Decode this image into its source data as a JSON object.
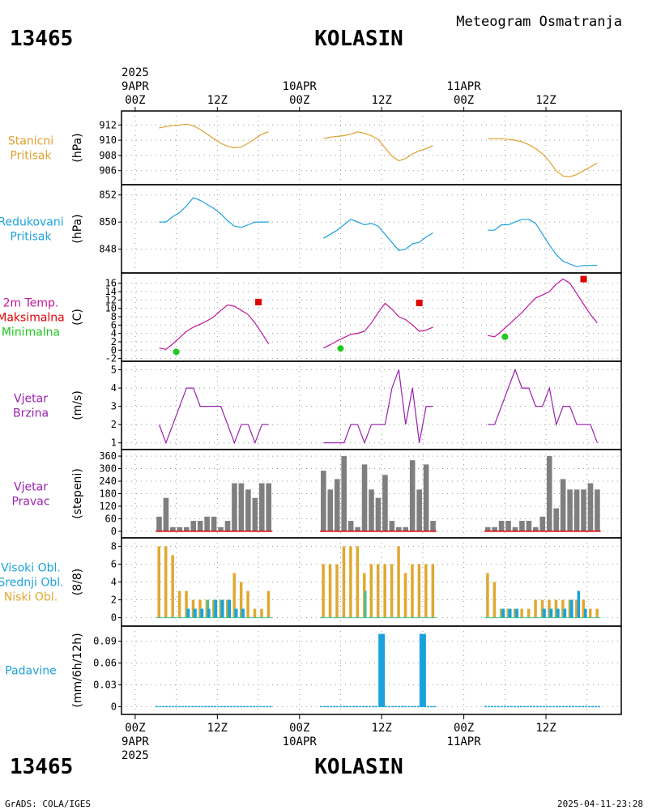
{
  "header": {
    "station_id": "13465",
    "station_name": "KOLASIN",
    "product": "Meteogram Osmatranja"
  },
  "footer": {
    "station_id": "13465",
    "station_name": "KOLASIN",
    "credit": "GrADS: COLA/IGES",
    "timestamp": "2025-04-11-23:28"
  },
  "x_axis": {
    "ticks": [
      {
        "hour": 0,
        "label": "00Z",
        "date": "9APR",
        "year": "2025"
      },
      {
        "hour": 12,
        "label": "12Z"
      },
      {
        "hour": 24,
        "label": "00Z",
        "date": "10APR"
      },
      {
        "hour": 36,
        "label": "12Z"
      },
      {
        "hour": 48,
        "label": "00Z",
        "date": "11APR"
      },
      {
        "hour": 60,
        "label": "12Z"
      }
    ]
  },
  "colors": {
    "pressure": "#e0a030",
    "reduced_pressure": "#1ba1dc",
    "temp": "#c0149a",
    "tmax": "#e00000",
    "tmin": "#20c820",
    "wind": "#9b1fb0",
    "wind_dir": "#7f7f7f",
    "cloud_high": "#1ba1dc",
    "cloud_mid": "#40c0a0",
    "cloud_low": "#e0a830",
    "precip": "#1ba1dc"
  },
  "chart_data": [
    {
      "type": "line",
      "label_lines": [
        "Stanicni",
        "Pritisak"
      ],
      "ylabel": "(hPa)",
      "ylim": [
        904.8,
        913.2
      ],
      "yticks": [
        906,
        908,
        910,
        912
      ],
      "series": [
        {
          "x": [
            3.5,
            4.5,
            5.5,
            6.5,
            7.5,
            8.5,
            9.5,
            10.5,
            11.5,
            12.5,
            13.5,
            14.5,
            15.5,
            16.5,
            17.5,
            18.5,
            19.5
          ],
          "y": [
            911.6,
            911.8,
            911.9,
            912.0,
            912.1,
            911.9,
            911.4,
            910.8,
            910.2,
            909.6,
            909.2,
            909.0,
            909.1,
            909.6,
            910.2,
            910.8,
            911.1
          ]
        },
        {
          "x": [
            27.5,
            28.5,
            29.5,
            30.5,
            31.5,
            32.5,
            33.5,
            34.5,
            35.5,
            36.5,
            37.5,
            38.5,
            39.5,
            40.5,
            41.5,
            42.5,
            43.5
          ],
          "y": [
            910.2,
            910.4,
            910.5,
            910.6,
            910.8,
            911.1,
            910.9,
            910.6,
            910.1,
            909.0,
            907.9,
            907.3,
            907.6,
            908.2,
            908.6,
            908.9,
            909.3
          ]
        },
        {
          "x": [
            51.5,
            52.5,
            53.5,
            54.5,
            55.5,
            56.5,
            57.5,
            58.5,
            59.5,
            60.5,
            61.5,
            62.5,
            63.5,
            64.5,
            65.5,
            66.5,
            67.5
          ],
          "y": [
            910.2,
            910.2,
            910.2,
            910.1,
            910.0,
            909.8,
            909.4,
            908.9,
            908.2,
            907.2,
            906.0,
            905.3,
            905.2,
            905.5,
            906.0,
            906.5,
            907.0
          ]
        }
      ]
    },
    {
      "type": "line",
      "label_lines": [
        "Redukovani",
        "Pritisak"
      ],
      "ylabel": "(hPa)",
      "ylim": [
        846.6,
        852.4
      ],
      "yticks": [
        848,
        850,
        852
      ],
      "series": [
        {
          "x": [
            3.5,
            4.5,
            5.5,
            6.5,
            7.5,
            8.5,
            9.5,
            10.5,
            11.5,
            12.5,
            13.5,
            14.5,
            15.5,
            16.5,
            17.5,
            18.5,
            19.5
          ],
          "y": [
            850.0,
            850.0,
            850.4,
            850.7,
            851.2,
            851.8,
            851.6,
            851.3,
            851.0,
            850.6,
            850.1,
            849.7,
            849.6,
            849.8,
            850.0,
            850.0,
            850.0
          ]
        },
        {
          "x": [
            27.5,
            28.5,
            29.5,
            30.5,
            31.5,
            32.5,
            33.5,
            34.5,
            35.5,
            36.5,
            37.5,
            38.5,
            39.5,
            40.5,
            41.5,
            42.5,
            43.5
          ],
          "y": [
            848.8,
            849.1,
            849.4,
            849.8,
            850.2,
            850.0,
            849.8,
            849.9,
            849.7,
            849.1,
            848.5,
            847.9,
            848.0,
            848.4,
            848.5,
            848.9,
            849.2
          ]
        },
        {
          "x": [
            51.5,
            52.5,
            53.5,
            54.5,
            55.5,
            56.5,
            57.5,
            58.5,
            59.5,
            60.5,
            61.5,
            62.5,
            63.5,
            64.5,
            65.5,
            66.5,
            67.5
          ],
          "y": [
            849.4,
            849.4,
            849.8,
            849.8,
            850.0,
            850.2,
            850.2,
            849.9,
            849.1,
            848.3,
            847.6,
            847.1,
            846.9,
            846.7,
            846.8,
            846.8,
            846.8
          ]
        }
      ]
    },
    {
      "type": "line",
      "label_lines": [
        "2m Temp.",
        "Maksimalna",
        "Minimalna"
      ],
      "label_colors": [
        "#c0149a",
        "#e00000",
        "#20c820"
      ],
      "ylabel": "(C)",
      "ylim": [
        -1.5,
        17.3
      ],
      "yticks": [
        -2,
        0,
        2,
        4,
        6,
        8,
        10,
        12,
        14,
        16
      ],
      "series": [
        {
          "x": [
            3.5,
            4.5,
            5.5,
            6.5,
            7.5,
            8.5,
            9.5,
            10.5,
            11.5,
            12.5,
            13.5,
            14.5,
            15.5,
            16.5,
            17.5,
            18.5,
            19.5
          ],
          "y": [
            0.5,
            0.2,
            1.5,
            3.0,
            4.5,
            5.5,
            6.2,
            7.0,
            8.0,
            9.5,
            10.8,
            10.5,
            9.5,
            8.5,
            6.5,
            4.0,
            1.5
          ]
        },
        {
          "x": [
            27.5,
            28.5,
            29.5,
            30.5,
            31.5,
            32.5,
            33.5,
            34.5,
            35.5,
            36.5,
            37.5,
            38.5,
            39.5,
            40.5,
            41.5,
            42.5,
            43.5
          ],
          "y": [
            0.5,
            1.3,
            2.2,
            3.0,
            3.8,
            4.0,
            4.5,
            6.5,
            9.0,
            11.2,
            9.8,
            8.0,
            7.3,
            6.0,
            4.5,
            4.8,
            5.5
          ]
        },
        {
          "x": [
            51.5,
            52.5,
            53.5,
            54.5,
            55.5,
            56.5,
            57.5,
            58.5,
            59.5,
            60.5,
            61.5,
            62.5,
            63.5,
            64.5,
            65.5,
            66.5,
            67.5
          ],
          "y": [
            3.5,
            3.2,
            4.5,
            6.0,
            7.5,
            9.0,
            10.8,
            12.5,
            13.2,
            14.0,
            15.8,
            17.0,
            16.0,
            13.5,
            11.0,
            8.5,
            6.5
          ]
        }
      ],
      "tmax": [
        {
          "x": 18.0,
          "y": 11.5
        },
        {
          "x": 41.5,
          "y": 11.3
        },
        {
          "x": 65.5,
          "y": 17.0
        }
      ],
      "tmin": [
        {
          "x": 6.0,
          "y": -0.4
        },
        {
          "x": 30.0,
          "y": 0.4
        },
        {
          "x": 54.0,
          "y": 3.2
        }
      ]
    },
    {
      "type": "line",
      "label_lines": [
        "Vjetar",
        "Brzina"
      ],
      "ylabel": "(m/s)",
      "ylim": [
        0.9,
        5.2
      ],
      "yticks": [
        1,
        2,
        3,
        4,
        5
      ],
      "series": [
        {
          "x": [
            3.5,
            4.5,
            5.5,
            6.5,
            7.5,
            8.5,
            9.5,
            10.5,
            11.5,
            12.5,
            13.5,
            14.5,
            15.5,
            16.5,
            17.5,
            18.5,
            19.5
          ],
          "y": [
            2,
            1,
            2,
            3,
            4,
            4,
            3,
            3,
            3,
            3,
            2,
            1,
            2,
            2,
            1,
            2,
            2
          ]
        },
        {
          "x": [
            27.5,
            28.5,
            29.5,
            30.5,
            31.5,
            32.5,
            33.5,
            34.5,
            35.5,
            36.5,
            37.5,
            38.5,
            39.5,
            40.5,
            41.5,
            42.5,
            43.5
          ],
          "y": [
            1,
            1,
            1,
            1,
            2,
            2,
            1,
            2,
            2,
            2,
            4,
            5,
            2,
            4,
            1,
            3,
            3
          ]
        },
        {
          "x": [
            51.5,
            52.5,
            53.5,
            54.5,
            55.5,
            56.5,
            57.5,
            58.5,
            59.5,
            60.5,
            61.5,
            62.5,
            63.5,
            64.5,
            65.5,
            66.5,
            67.5
          ],
          "y": [
            2,
            2,
            3,
            4,
            5,
            4,
            4,
            3,
            3,
            4,
            2,
            3,
            3,
            2,
            2,
            2,
            1
          ]
        }
      ]
    },
    {
      "type": "bar",
      "label_lines": [
        "Vjetar",
        "Pravac"
      ],
      "ylabel": "(stepeni)",
      "ylim": [
        -8,
        368
      ],
      "yticks": [
        0,
        60,
        120,
        180,
        240,
        300,
        360
      ],
      "x": [
        3.5,
        4.5,
        5.5,
        6.5,
        7.5,
        8.5,
        9.5,
        10.5,
        11.5,
        12.5,
        13.5,
        14.5,
        15.5,
        16.5,
        17.5,
        18.5,
        19.5,
        27.5,
        28.5,
        29.5,
        30.5,
        31.5,
        32.5,
        33.5,
        34.5,
        35.5,
        36.5,
        37.5,
        38.5,
        39.5,
        40.5,
        41.5,
        42.5,
        43.5,
        51.5,
        52.5,
        53.5,
        54.5,
        55.5,
        56.5,
        57.5,
        58.5,
        59.5,
        60.5,
        61.5,
        62.5,
        63.5,
        64.5,
        65.5,
        66.5,
        67.5
      ],
      "values": [
        70,
        160,
        20,
        20,
        20,
        50,
        50,
        70,
        70,
        20,
        50,
        230,
        230,
        200,
        160,
        230,
        230,
        290,
        200,
        250,
        360,
        50,
        20,
        320,
        200,
        160,
        270,
        50,
        20,
        20,
        340,
        200,
        320,
        50,
        20,
        20,
        50,
        50,
        20,
        50,
        50,
        20,
        70,
        360,
        110,
        250,
        200,
        200,
        200,
        230,
        200
      ]
    },
    {
      "type": "bar",
      "label_lines": [
        "Visoki Obl.",
        "Srednji Obl.",
        "Niski Obl."
      ],
      "label_colors": [
        "#1ba1dc",
        "#1ba1dc",
        "#e0a830"
      ],
      "ylabel": "(8/8)",
      "ylim": [
        -0.4,
        8.4
      ],
      "yticks": [
        0,
        2,
        4,
        6,
        8
      ],
      "x": [
        3.5,
        4.5,
        5.5,
        6.5,
        7.5,
        8.5,
        9.5,
        10.5,
        11.5,
        12.5,
        13.5,
        14.5,
        15.5,
        16.5,
        17.5,
        18.5,
        19.5,
        27.5,
        28.5,
        29.5,
        30.5,
        31.5,
        32.5,
        33.5,
        34.5,
        35.5,
        36.5,
        37.5,
        38.5,
        39.5,
        40.5,
        41.5,
        42.5,
        43.5,
        51.5,
        52.5,
        53.5,
        54.5,
        55.5,
        56.5,
        57.5,
        58.5,
        59.5,
        60.5,
        61.5,
        62.5,
        63.5,
        64.5,
        65.5,
        66.5,
        67.5
      ],
      "series": [
        {
          "name": "Niski Obl.",
          "values": [
            8,
            8,
            7,
            3,
            3,
            2,
            2,
            2,
            2,
            2,
            2,
            5,
            4,
            3,
            1,
            1,
            3,
            6,
            6,
            6,
            8,
            8,
            8,
            5,
            6,
            6,
            6,
            6,
            8,
            5,
            6,
            6,
            6,
            6,
            5,
            4,
            1,
            1,
            1,
            1,
            1,
            2,
            2,
            2,
            2,
            2,
            2,
            2,
            2,
            1,
            1
          ]
        },
        {
          "name": "Srednji Obl.",
          "values": [
            0,
            0,
            0,
            0,
            1,
            1,
            1,
            2,
            2,
            2,
            2,
            1,
            1,
            0,
            0,
            0,
            0,
            0,
            0,
            0,
            0,
            0,
            0,
            3,
            0,
            0,
            0,
            0,
            0,
            0,
            0,
            0,
            0,
            0,
            0,
            0,
            1,
            1,
            1,
            0,
            0,
            0,
            1,
            1,
            1,
            1,
            2,
            0,
            0,
            0,
            0
          ]
        },
        {
          "name": "Visoki Obl.",
          "values": [
            0,
            0,
            0,
            0,
            1,
            1,
            1,
            1,
            2,
            2,
            2,
            1,
            1,
            0,
            0,
            0,
            0,
            0,
            0,
            0,
            0,
            0,
            0,
            0,
            0,
            0,
            0,
            0,
            0,
            0,
            0,
            0,
            0,
            0,
            0,
            0,
            1,
            1,
            1,
            0,
            0,
            0,
            1,
            1,
            1,
            1,
            2,
            3,
            1,
            0,
            0
          ]
        }
      ]
    },
    {
      "type": "bar",
      "label_lines": [
        "Padavine"
      ],
      "ylabel": "(mm/6h/12h)",
      "ylim": [
        -0.004,
        0.104
      ],
      "yticks": [
        0,
        0.03,
        0.06,
        0.09
      ],
      "ytick_labels": [
        "0",
        "0.03",
        "0.06",
        "0.09"
      ],
      "x": [
        36.0,
        42.0
      ],
      "values": [
        0.1,
        0.1
      ]
    }
  ]
}
